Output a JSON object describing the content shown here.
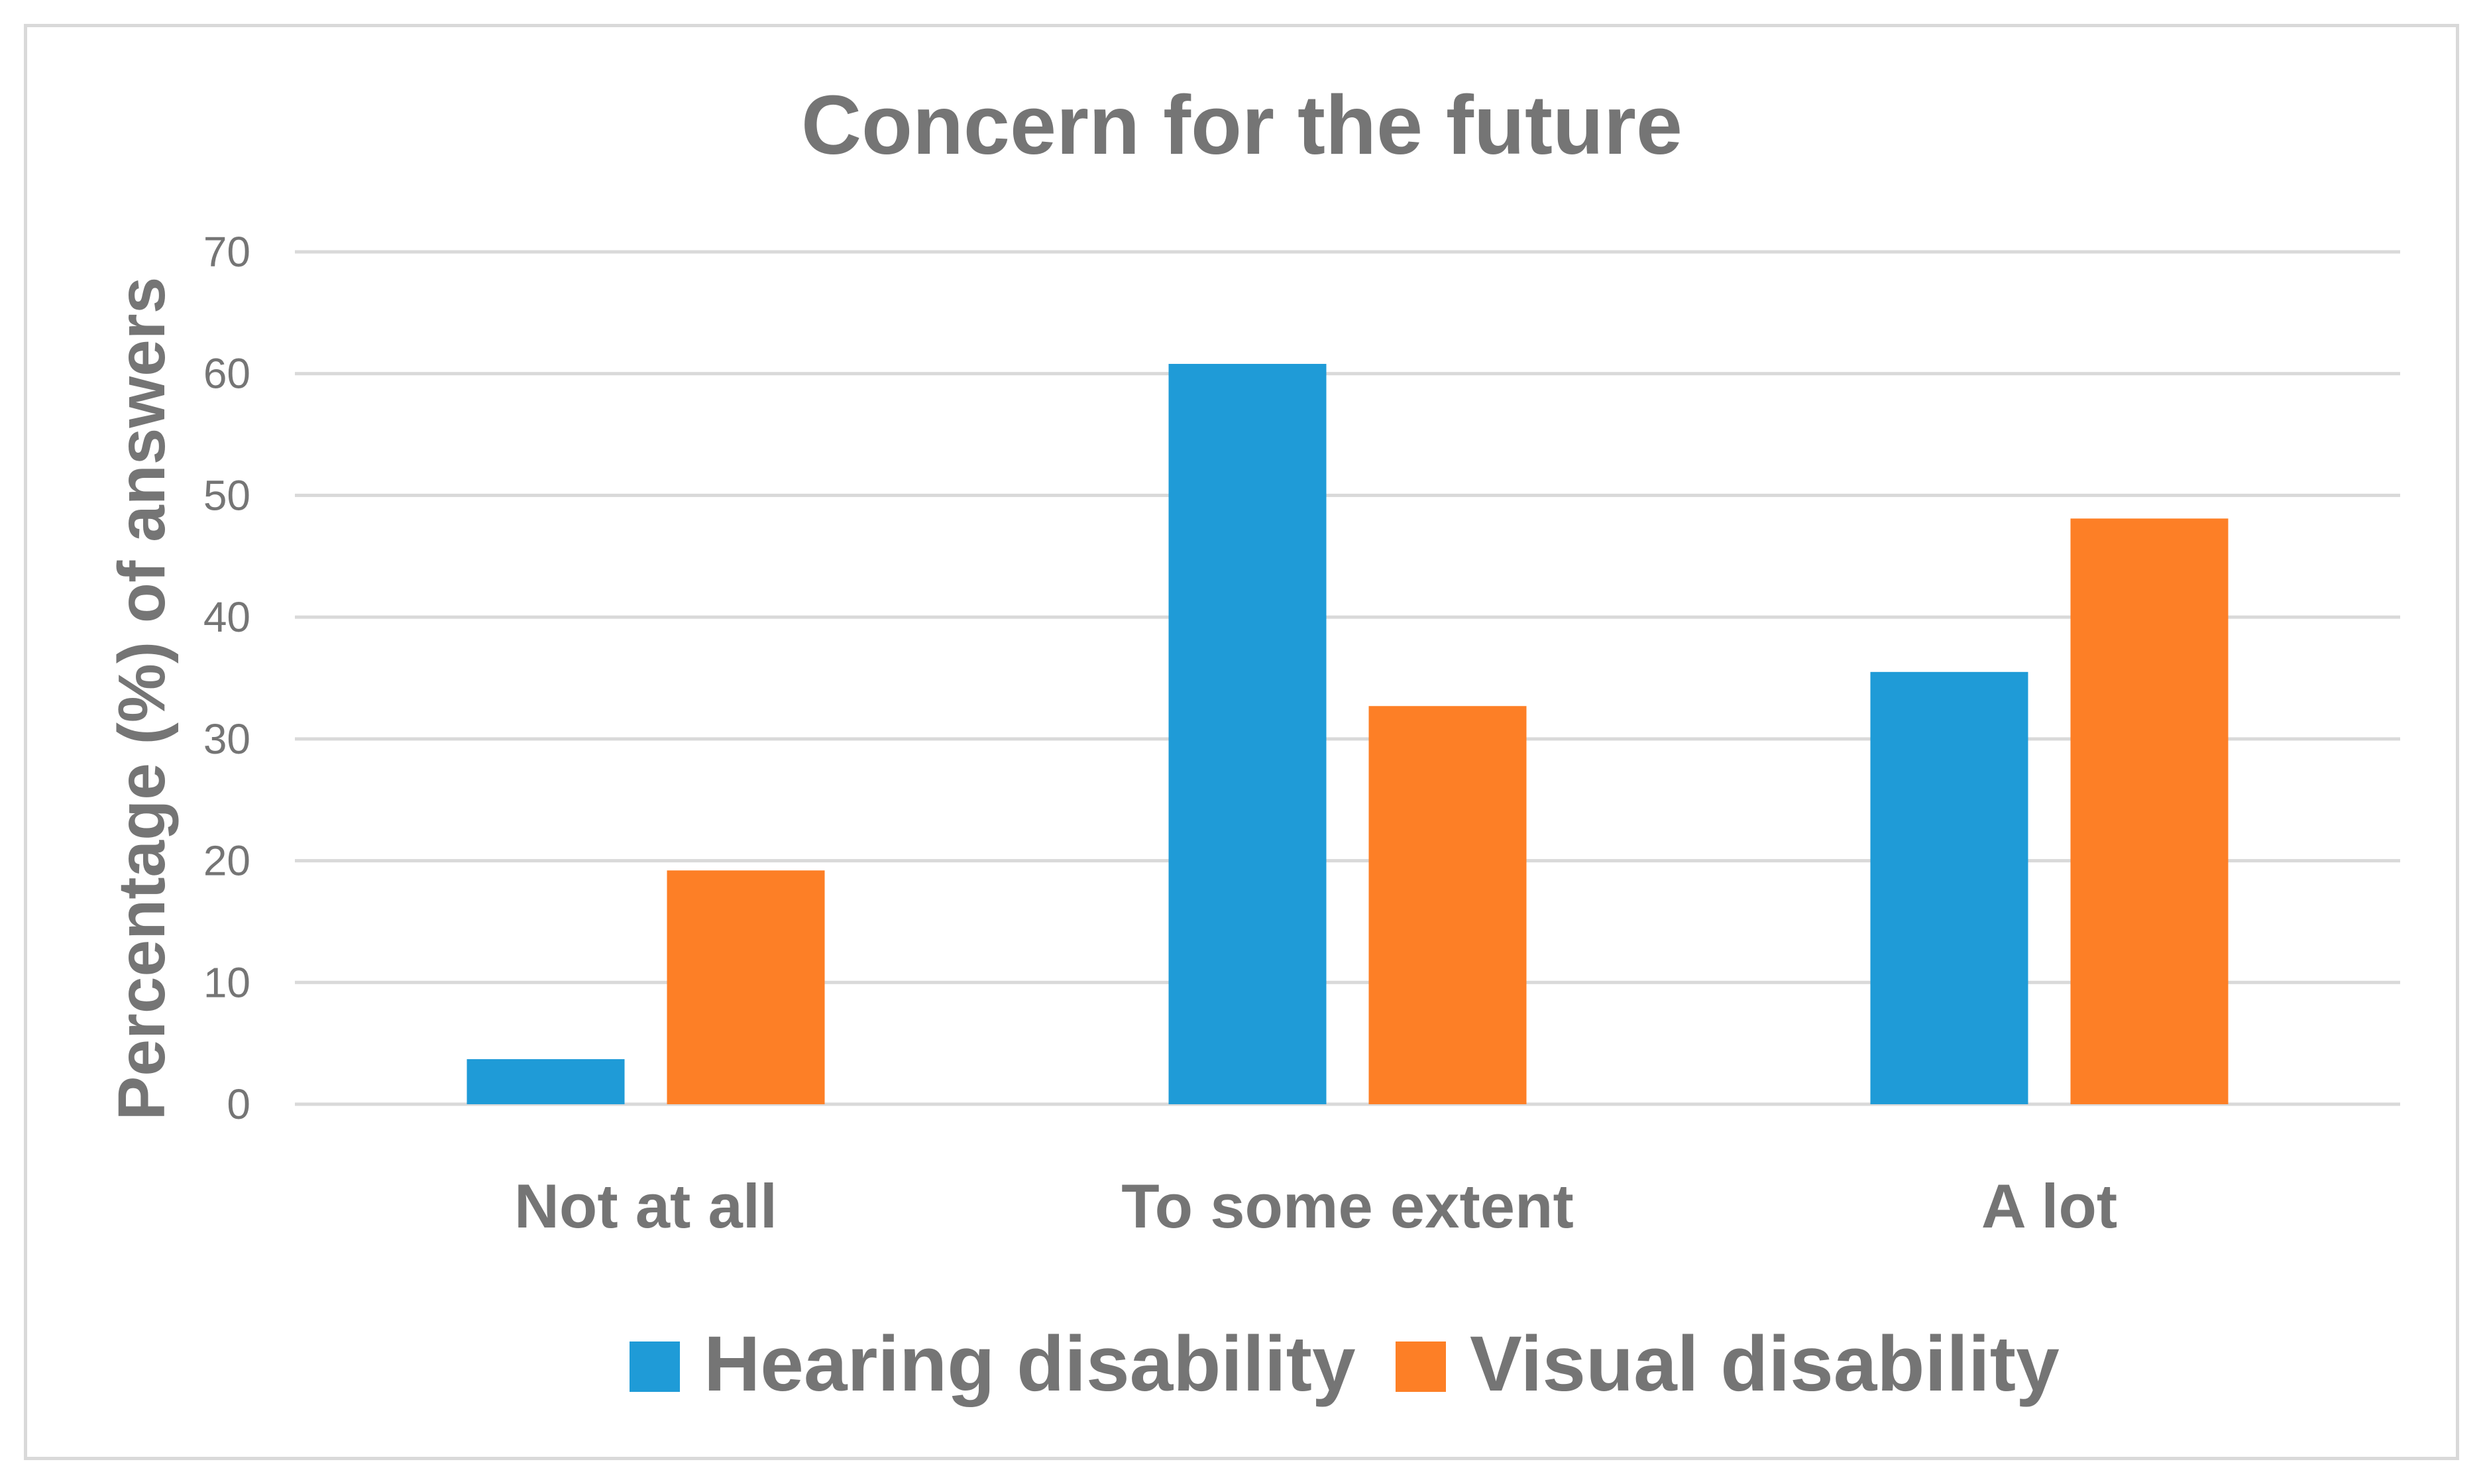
{
  "chart_data": {
    "type": "bar",
    "title": "Concern for the future",
    "xlabel": "",
    "ylabel": "Percentage (%) of answers",
    "ylim": [
      0,
      70
    ],
    "yticks": [
      0,
      10,
      20,
      30,
      40,
      50,
      60,
      70
    ],
    "grid": true,
    "legend_position": "bottom",
    "categories": [
      "Not at all",
      "To some extent",
      "A lot"
    ],
    "series": [
      {
        "name": "Hearing disability",
        "color": "#1f9bd7",
        "values": [
          3.7,
          60.8,
          35.5
        ]
      },
      {
        "name": "Visual disability",
        "color": "#fd7f26",
        "values": [
          19.2,
          32.7,
          48.1
        ]
      }
    ]
  }
}
